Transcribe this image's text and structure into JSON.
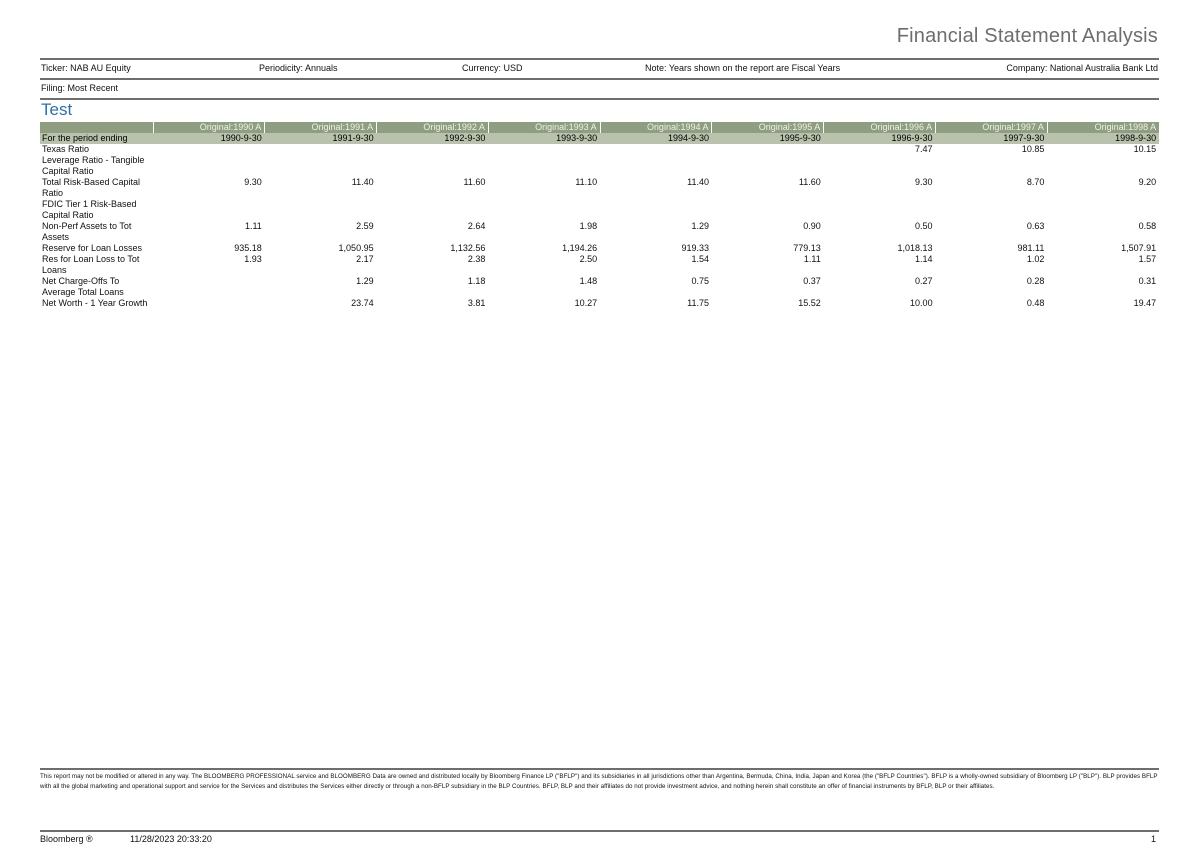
{
  "header": {
    "report_title": "Financial Statement Analysis",
    "ticker": "Ticker: NAB AU Equity",
    "periodicity": "Periodicity: Annuals",
    "currency": "Currency: USD",
    "note": "Note: Years shown on the report are Fiscal Years",
    "company": "Company: National Australia Bank Ltd",
    "filing": "Filing: Most Recent"
  },
  "section": {
    "title": "Test"
  },
  "table": {
    "columns": [
      "Original:1990 A",
      "Original:1991 A",
      "Original:1992 A",
      "Original:1993 A",
      "Original:1994 A",
      "Original:1995 A",
      "Original:1996 A",
      "Original:1997 A",
      "Original:1998 A"
    ],
    "period_label": "For the period ending",
    "period_dates": [
      "1990-9-30",
      "1991-9-30",
      "1992-9-30",
      "1993-9-30",
      "1994-9-30",
      "1995-9-30",
      "1996-9-30",
      "1997-9-30",
      "1998-9-30"
    ],
    "rows": [
      {
        "label": "Texas Ratio",
        "values": [
          "",
          "",
          "",
          "",
          "",
          "",
          "7.47",
          "10.85",
          "10.15"
        ]
      },
      {
        "label": "Leverage Ratio - Tangible Capital Ratio",
        "values": [
          "",
          "",
          "",
          "",
          "",
          "",
          "",
          "",
          ""
        ]
      },
      {
        "label": "Total Risk-Based Capital Ratio",
        "values": [
          "9.30",
          "11.40",
          "11.60",
          "11.10",
          "11.40",
          "11.60",
          "9.30",
          "8.70",
          "9.20"
        ]
      },
      {
        "label": "FDIC Tier 1 Risk-Based Capital Ratio",
        "values": [
          "",
          "",
          "",
          "",
          "",
          "",
          "",
          "",
          ""
        ]
      },
      {
        "label": "Non-Perf Assets to Tot Assets",
        "values": [
          "1.11",
          "2.59",
          "2.64",
          "1.98",
          "1.29",
          "0.90",
          "0.50",
          "0.63",
          "0.58"
        ]
      },
      {
        "label": "Reserve for Loan Losses",
        "values": [
          "935.18",
          "1,050.95",
          "1,132.56",
          "1,194.26",
          "919.33",
          "779.13",
          "1,018.13",
          "981.11",
          "1,507.91"
        ]
      },
      {
        "label": "Res for Loan Loss to Tot Loans",
        "values": [
          "1.93",
          "2.17",
          "2.38",
          "2.50",
          "1.54",
          "1.11",
          "1.14",
          "1.02",
          "1.57"
        ]
      },
      {
        "label": "Net Charge-Offs To Average Total Loans",
        "values": [
          "",
          "1.29",
          "1.18",
          "1.48",
          "0.75",
          "0.37",
          "0.27",
          "0.28",
          "0.31"
        ]
      },
      {
        "label": "Net Worth - 1 Year Growth",
        "values": [
          "",
          "23.74",
          "3.81",
          "10.27",
          "11.75",
          "15.52",
          "10.00",
          "0.48",
          "19.47"
        ]
      }
    ]
  },
  "disclaimer": "This report may not be modified or altered in any way. The BLOOMBERG PROFESSIONAL service and BLOOMBERG Data are owned and distributed locally by Bloomberg Finance LP (\"BFLP\") and its subsidiaries in all jurisdictions other than Argentina, Bermuda, China, India, Japan and Korea (the (\"BFLP Countries\"). BFLP is a wholly-owned subsidiary of Bloomberg LP (\"BLP\"). BLP provides BFLP with all the global marketing and operational support and service for the Services and distributes the Services either directly or through a non-BFLP subsidiary in the BLP Countries. BFLP, BLP and their affiliates do not provide investment advice, and nothing herein shall constitute an offer of financial instruments by BFLP, BLP or their affiliates.",
  "footer": {
    "brand": "Bloomberg ®",
    "timestamp": "11/28/2023 20:33:20",
    "page_number": "1"
  },
  "colors": {
    "header_band_top": "#8f9e80",
    "header_band_bottom": "#b8c2ac",
    "section_title": "#2f6fa8",
    "report_title": "#6d6d6d"
  }
}
